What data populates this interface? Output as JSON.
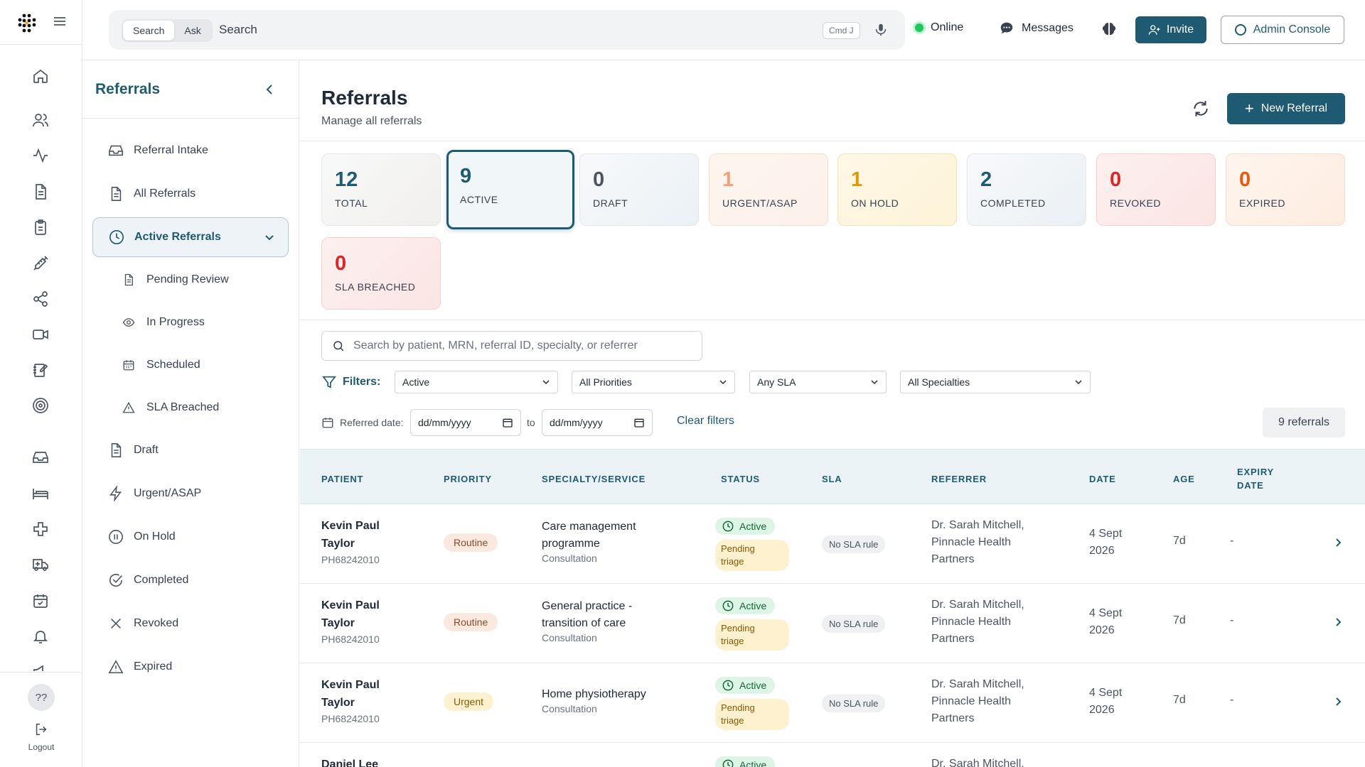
{
  "topbar": {
    "seg_search": "Search",
    "seg_ask": "Ask",
    "search_placeholder": "Search",
    "shortcut": "Cmd J",
    "status": "Online",
    "messages": "Messages",
    "invite": "Invite",
    "admin_console": "Admin Console"
  },
  "rail": {
    "help": "??",
    "logout": "Logout"
  },
  "nav": {
    "title": "Referrals",
    "items": {
      "intake": "Referral Intake",
      "all": "All Referrals",
      "active": "Active Referrals",
      "pending": "Pending Review",
      "in_progress": "In Progress",
      "scheduled": "Scheduled",
      "sla_breached": "SLA Breached",
      "draft": "Draft",
      "urgent": "Urgent/ASAP",
      "on_hold": "On Hold",
      "completed": "Completed",
      "revoked": "Revoked",
      "expired": "Expired"
    }
  },
  "main": {
    "title": "Referrals",
    "subtitle": "Manage all referrals",
    "new_referral": "New Referral"
  },
  "stats": [
    {
      "value": "12",
      "label": "TOTAL",
      "color": "#1e5b73"
    },
    {
      "value": "9",
      "label": "ACTIVE",
      "color": "#1e5b73"
    },
    {
      "value": "0",
      "label": "DRAFT",
      "color": "#4b5563"
    },
    {
      "value": "1",
      "label": "URGENT/ASAP",
      "color": "#f0a37a"
    },
    {
      "value": "1",
      "label": "ON HOLD",
      "color": "#e39a00"
    },
    {
      "value": "2",
      "label": "COMPLETED",
      "color": "#1e5b73"
    },
    {
      "value": "0",
      "label": "REVOKED",
      "color": "#dc2626"
    },
    {
      "value": "0",
      "label": "EXPIRED",
      "color": "#ea580c"
    },
    {
      "value": "0",
      "label": "SLA BREACHED",
      "color": "#dc2626"
    }
  ],
  "filters": {
    "search_placeholder": "Search by patient, MRN, referral ID, specialty, or referrer",
    "label": "Filters:",
    "status": "Active",
    "priority": "All Priorities",
    "sla": "Any SLA",
    "specialty": "All Specialties",
    "date_label": "Referred date:",
    "date_from": "dd/mm/yyyy",
    "date_to_label": "to",
    "date_to": "dd/mm/yyyy",
    "clear": "Clear filters",
    "count": "9 referrals"
  },
  "table": {
    "headers": {
      "patient": "PATIENT",
      "priority": "PRIORITY",
      "specialty": "SPECIALTY/SERVICE",
      "status": "STATUS",
      "sla": "SLA",
      "referrer": "REFERRER",
      "date": "DATE",
      "age": "AGE",
      "expiry_1": "EXPIRY",
      "expiry_2": "DATE"
    },
    "rows": [
      {
        "name_1": "Kevin Paul",
        "name_2": "Taylor",
        "mrn": "PH68242010",
        "priority": "Routine",
        "spec_1": "Care management",
        "spec_2": "programme",
        "spec_sub": "Consultation",
        "status": "Active",
        "substatus_1": "Pending",
        "substatus_2": "triage",
        "sla": "No SLA rule",
        "ref_1": "Dr. Sarah Mitchell,",
        "ref_2": "Pinnacle Health",
        "ref_3": "Partners",
        "date_1": "4 Sept",
        "date_2": "2026",
        "age": "7d",
        "expiry": "-"
      },
      {
        "name_1": "Kevin Paul",
        "name_2": "Taylor",
        "mrn": "PH68242010",
        "priority": "Routine",
        "spec_1": "General practice -",
        "spec_2": "transition of care",
        "spec_sub": "Consultation",
        "status": "Active",
        "substatus_1": "Pending",
        "substatus_2": "triage",
        "sla": "No SLA rule",
        "ref_1": "Dr. Sarah Mitchell,",
        "ref_2": "Pinnacle Health",
        "ref_3": "Partners",
        "date_1": "4 Sept",
        "date_2": "2026",
        "age": "7d",
        "expiry": "-"
      },
      {
        "name_1": "Kevin Paul",
        "name_2": "Taylor",
        "mrn": "PH68242010",
        "priority": "Urgent",
        "spec_1": "Home physiotherapy",
        "spec_2": "",
        "spec_sub": "Consultation",
        "status": "Active",
        "substatus_1": "Pending",
        "substatus_2": "triage",
        "sla": "No SLA rule",
        "ref_1": "Dr. Sarah Mitchell,",
        "ref_2": "Pinnacle Health",
        "ref_3": "Partners",
        "date_1": "4 Sept",
        "date_2": "2026",
        "age": "7d",
        "expiry": "-"
      },
      {
        "name_1": "Daniel Lee",
        "status": "Active",
        "ref_1": "Dr. Sarah Mitchell,"
      }
    ]
  }
}
